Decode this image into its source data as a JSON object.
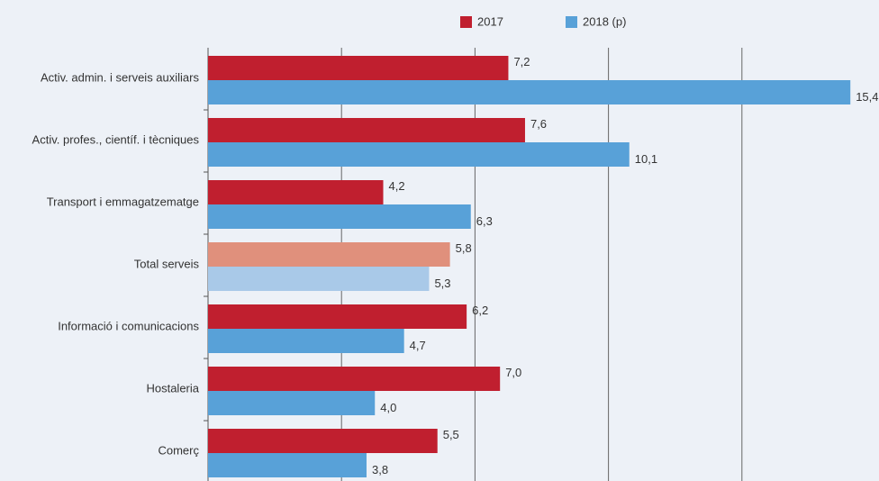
{
  "chart_data": {
    "type": "hbar",
    "categories": [
      "Activ. admin. i serveis auxiliars",
      "Activ. profes., científ. i tècniques",
      "Transport i emmagatzematge",
      "Total serveis",
      "Informació i comunicacions",
      "Hostaleria",
      "Comerç"
    ],
    "series": [
      {
        "name": "2017",
        "color": "#c01f2f",
        "highlight_color": "#e0907c",
        "values": [
          7.2,
          7.6,
          4.2,
          5.8,
          6.2,
          7.0,
          5.5
        ],
        "value_labels": [
          "7,2",
          "7,6",
          "4,2",
          "5,8",
          "6,2",
          "7,0",
          "5,5"
        ]
      },
      {
        "name": "2018 (p)",
        "color": "#58a1d8",
        "highlight_color": "#a9c9e8",
        "values": [
          15.4,
          10.1,
          6.3,
          5.3,
          4.7,
          4.0,
          3.8
        ],
        "value_labels": [
          "15,4",
          "10,1",
          "6,3",
          "5,3",
          "4,7",
          "4,0",
          "3,8"
        ]
      }
    ],
    "highlight_category": "Total serveis",
    "xlim": [
      0,
      16
    ],
    "xticks": [
      0,
      3.2,
      6.4,
      9.6,
      12.8
    ],
    "grid": true,
    "legend": "top"
  }
}
